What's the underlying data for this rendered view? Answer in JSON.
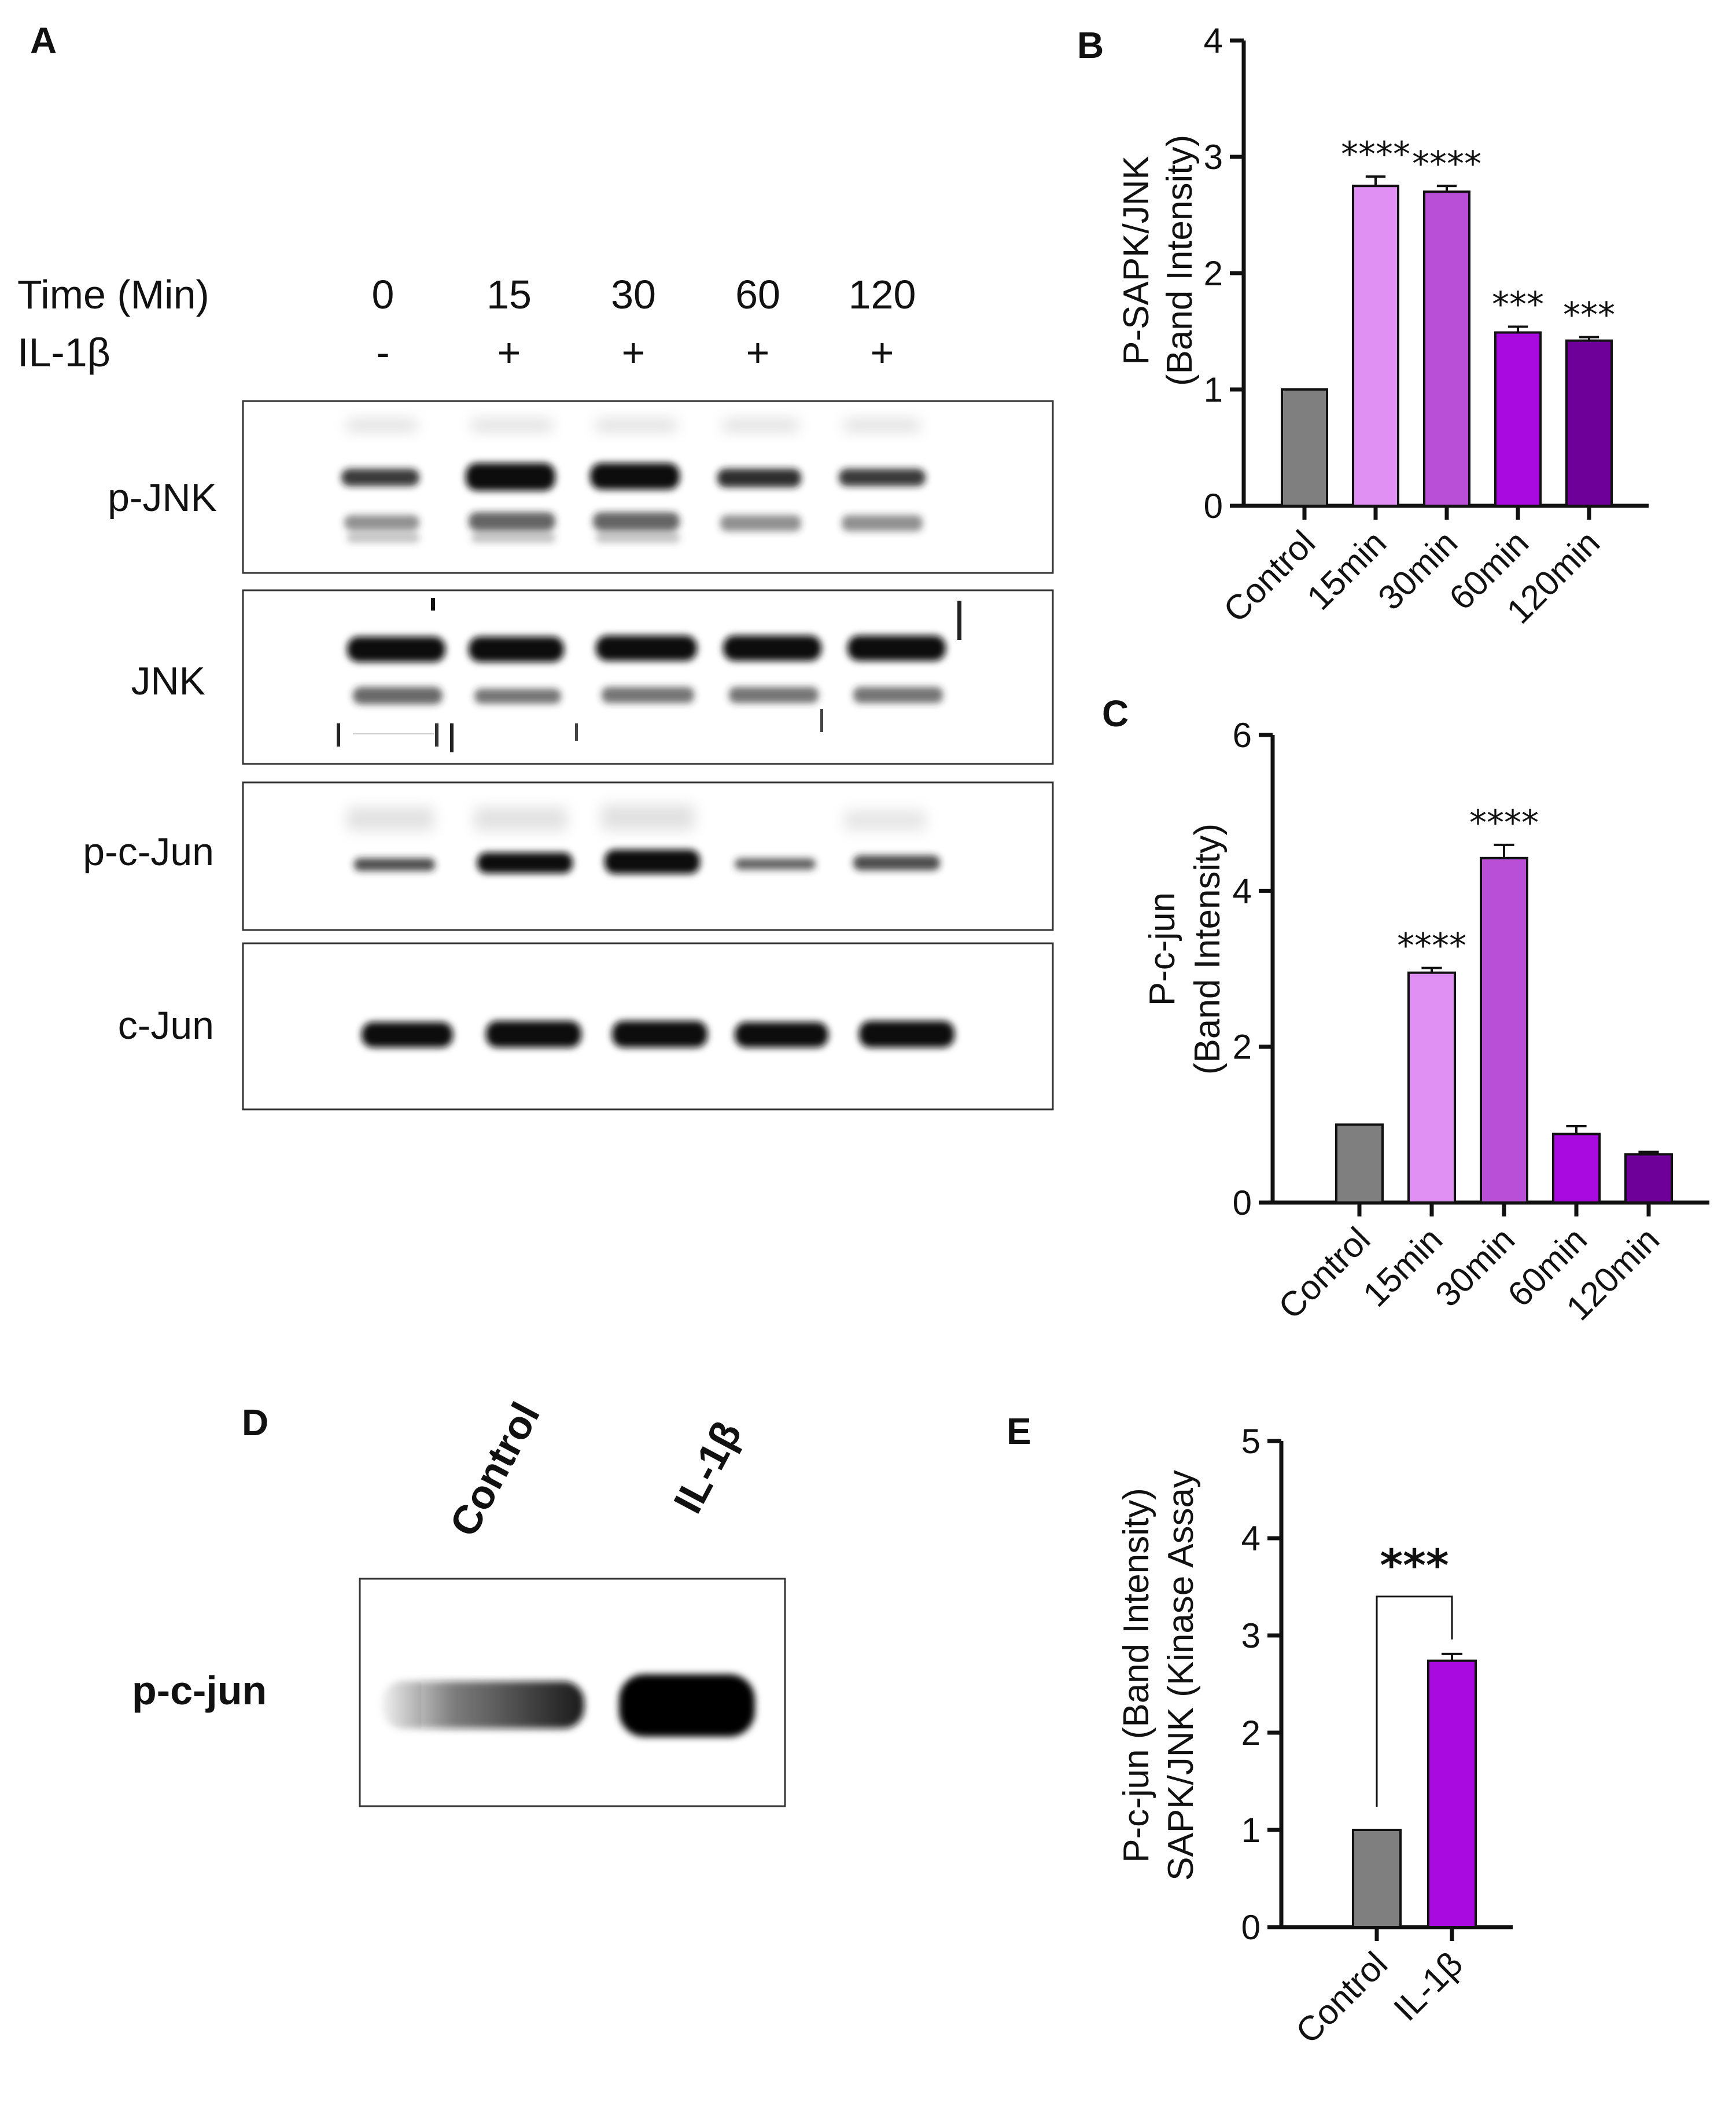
{
  "panels": {
    "A": "A",
    "B": "B",
    "C": "C",
    "D": "D",
    "E": "E"
  },
  "blot_A": {
    "time_label": "Time (Min)",
    "treatment_label": "IL-1β",
    "times": [
      "0",
      "15",
      "30",
      "60",
      "120"
    ],
    "treatment": [
      "-",
      "+",
      "+",
      "+",
      "+"
    ],
    "rows": [
      "p-JNK",
      "JNK",
      "p-c-Jun",
      "c-Jun"
    ]
  },
  "blot_D": {
    "lanes": [
      "Control",
      "IL-1β"
    ],
    "row": "p-c-jun"
  },
  "chart_data": [
    {
      "panel": "B",
      "type": "bar",
      "categories": [
        "Control",
        "15min",
        "30min",
        "60min",
        "120min"
      ],
      "values": [
        1.0,
        2.75,
        2.7,
        1.49,
        1.42
      ],
      "errors": [
        0,
        0.08,
        0.05,
        0.05,
        0.03
      ],
      "significance": [
        "",
        "****",
        "****",
        "***",
        "***"
      ],
      "colors": [
        "#7f7f7f",
        "#e08ff2",
        "#b94fd6",
        "#a80ae0",
        "#6e0099"
      ],
      "ylabel": [
        "P-SAPK/JNK",
        "(Band Intensity)"
      ],
      "ylim": [
        0,
        4
      ],
      "yticks": [
        "0",
        "1",
        "2",
        "3",
        "4"
      ]
    },
    {
      "panel": "C",
      "type": "bar",
      "categories": [
        "Control",
        "15min",
        "30min",
        "60min",
        "120min"
      ],
      "values": [
        1.0,
        2.95,
        4.42,
        0.88,
        0.62
      ],
      "errors": [
        0,
        0.06,
        0.17,
        0.1,
        0.03
      ],
      "significance": [
        "",
        "****",
        "****",
        "",
        ""
      ],
      "colors": [
        "#7f7f7f",
        "#e08ff2",
        "#b94fd6",
        "#a80ae0",
        "#6e0099"
      ],
      "ylabel": [
        "P-c-jun",
        "(Band Intensity)"
      ],
      "ylim": [
        0,
        6
      ],
      "yticks": [
        "0",
        "2",
        "4",
        "6"
      ]
    },
    {
      "panel": "E",
      "type": "bar",
      "categories": [
        "Control",
        "IL-1β"
      ],
      "values": [
        1.0,
        2.74
      ],
      "errors": [
        0,
        0.07
      ],
      "significance_bracket": "***",
      "colors": [
        "#7f7f7f",
        "#a80ae0"
      ],
      "ylabel": [
        "P-c-jun (Band Intensity)",
        "SAPK/JNK (Kinase Assay"
      ],
      "ylim": [
        0,
        5
      ],
      "yticks": [
        "0",
        "1",
        "2",
        "3",
        "4",
        "5"
      ]
    }
  ]
}
